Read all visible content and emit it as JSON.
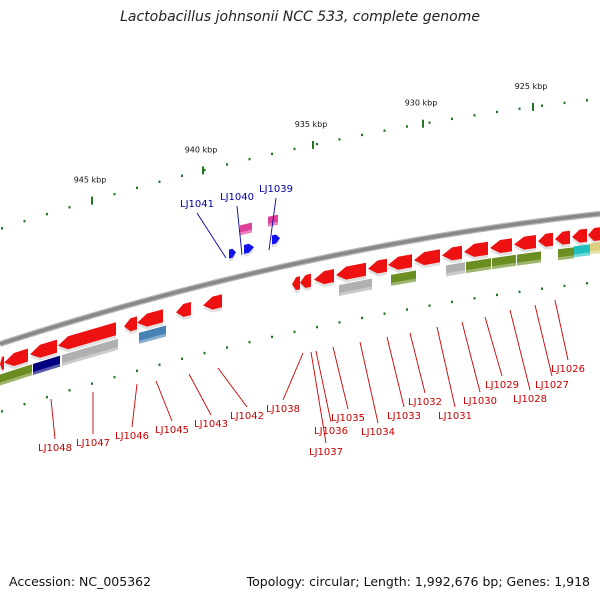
{
  "title": "Lactobacillus johnsonii NCC 533, complete genome",
  "footer": {
    "accession": "Accession: NC_005362",
    "summary": "Topology: circular; Length: 1,992,676 bp; Genes: 1,918"
  },
  "colors": {
    "gene_red": "#ee1111",
    "gene_olive": "#6b8e23",
    "gene_grey": "#b0b0b0",
    "gene_navy": "#000080",
    "gene_steel": "#4682b4",
    "gene_cyan": "#20c0c0",
    "gene_khaki": "#dcd080",
    "gene_magenta": "#e0409a",
    "gene_blue": "#1111ee",
    "tick_green": "#227722",
    "backbone": "#888888",
    "label_red": "#cc0000",
    "label_blue": "#0000aa"
  },
  "ticks": [
    {
      "label": "925 kbp"
    },
    {
      "label": "930 kbp"
    },
    {
      "label": "935 kbp"
    },
    {
      "label": "940 kbp"
    },
    {
      "label": "945 kbp"
    }
  ],
  "genes": [
    {
      "label": "LJ1026"
    },
    {
      "label": "LJ1027"
    },
    {
      "label": "LJ1028"
    },
    {
      "label": "LJ1029"
    },
    {
      "label": "LJ1030"
    },
    {
      "label": "LJ1031"
    },
    {
      "label": "LJ1032"
    },
    {
      "label": "LJ1033"
    },
    {
      "label": "LJ1034"
    },
    {
      "label": "LJ1035"
    },
    {
      "label": "LJ1036"
    },
    {
      "label": "LJ1037"
    },
    {
      "label": "LJ1038"
    },
    {
      "label": "LJ1039"
    },
    {
      "label": "LJ1040"
    },
    {
      "label": "LJ1041"
    },
    {
      "label": "LJ1042"
    },
    {
      "label": "LJ1043"
    },
    {
      "label": "LJ1045"
    },
    {
      "label": "LJ1046"
    },
    {
      "label": "LJ1047"
    },
    {
      "label": "LJ1048"
    }
  ]
}
